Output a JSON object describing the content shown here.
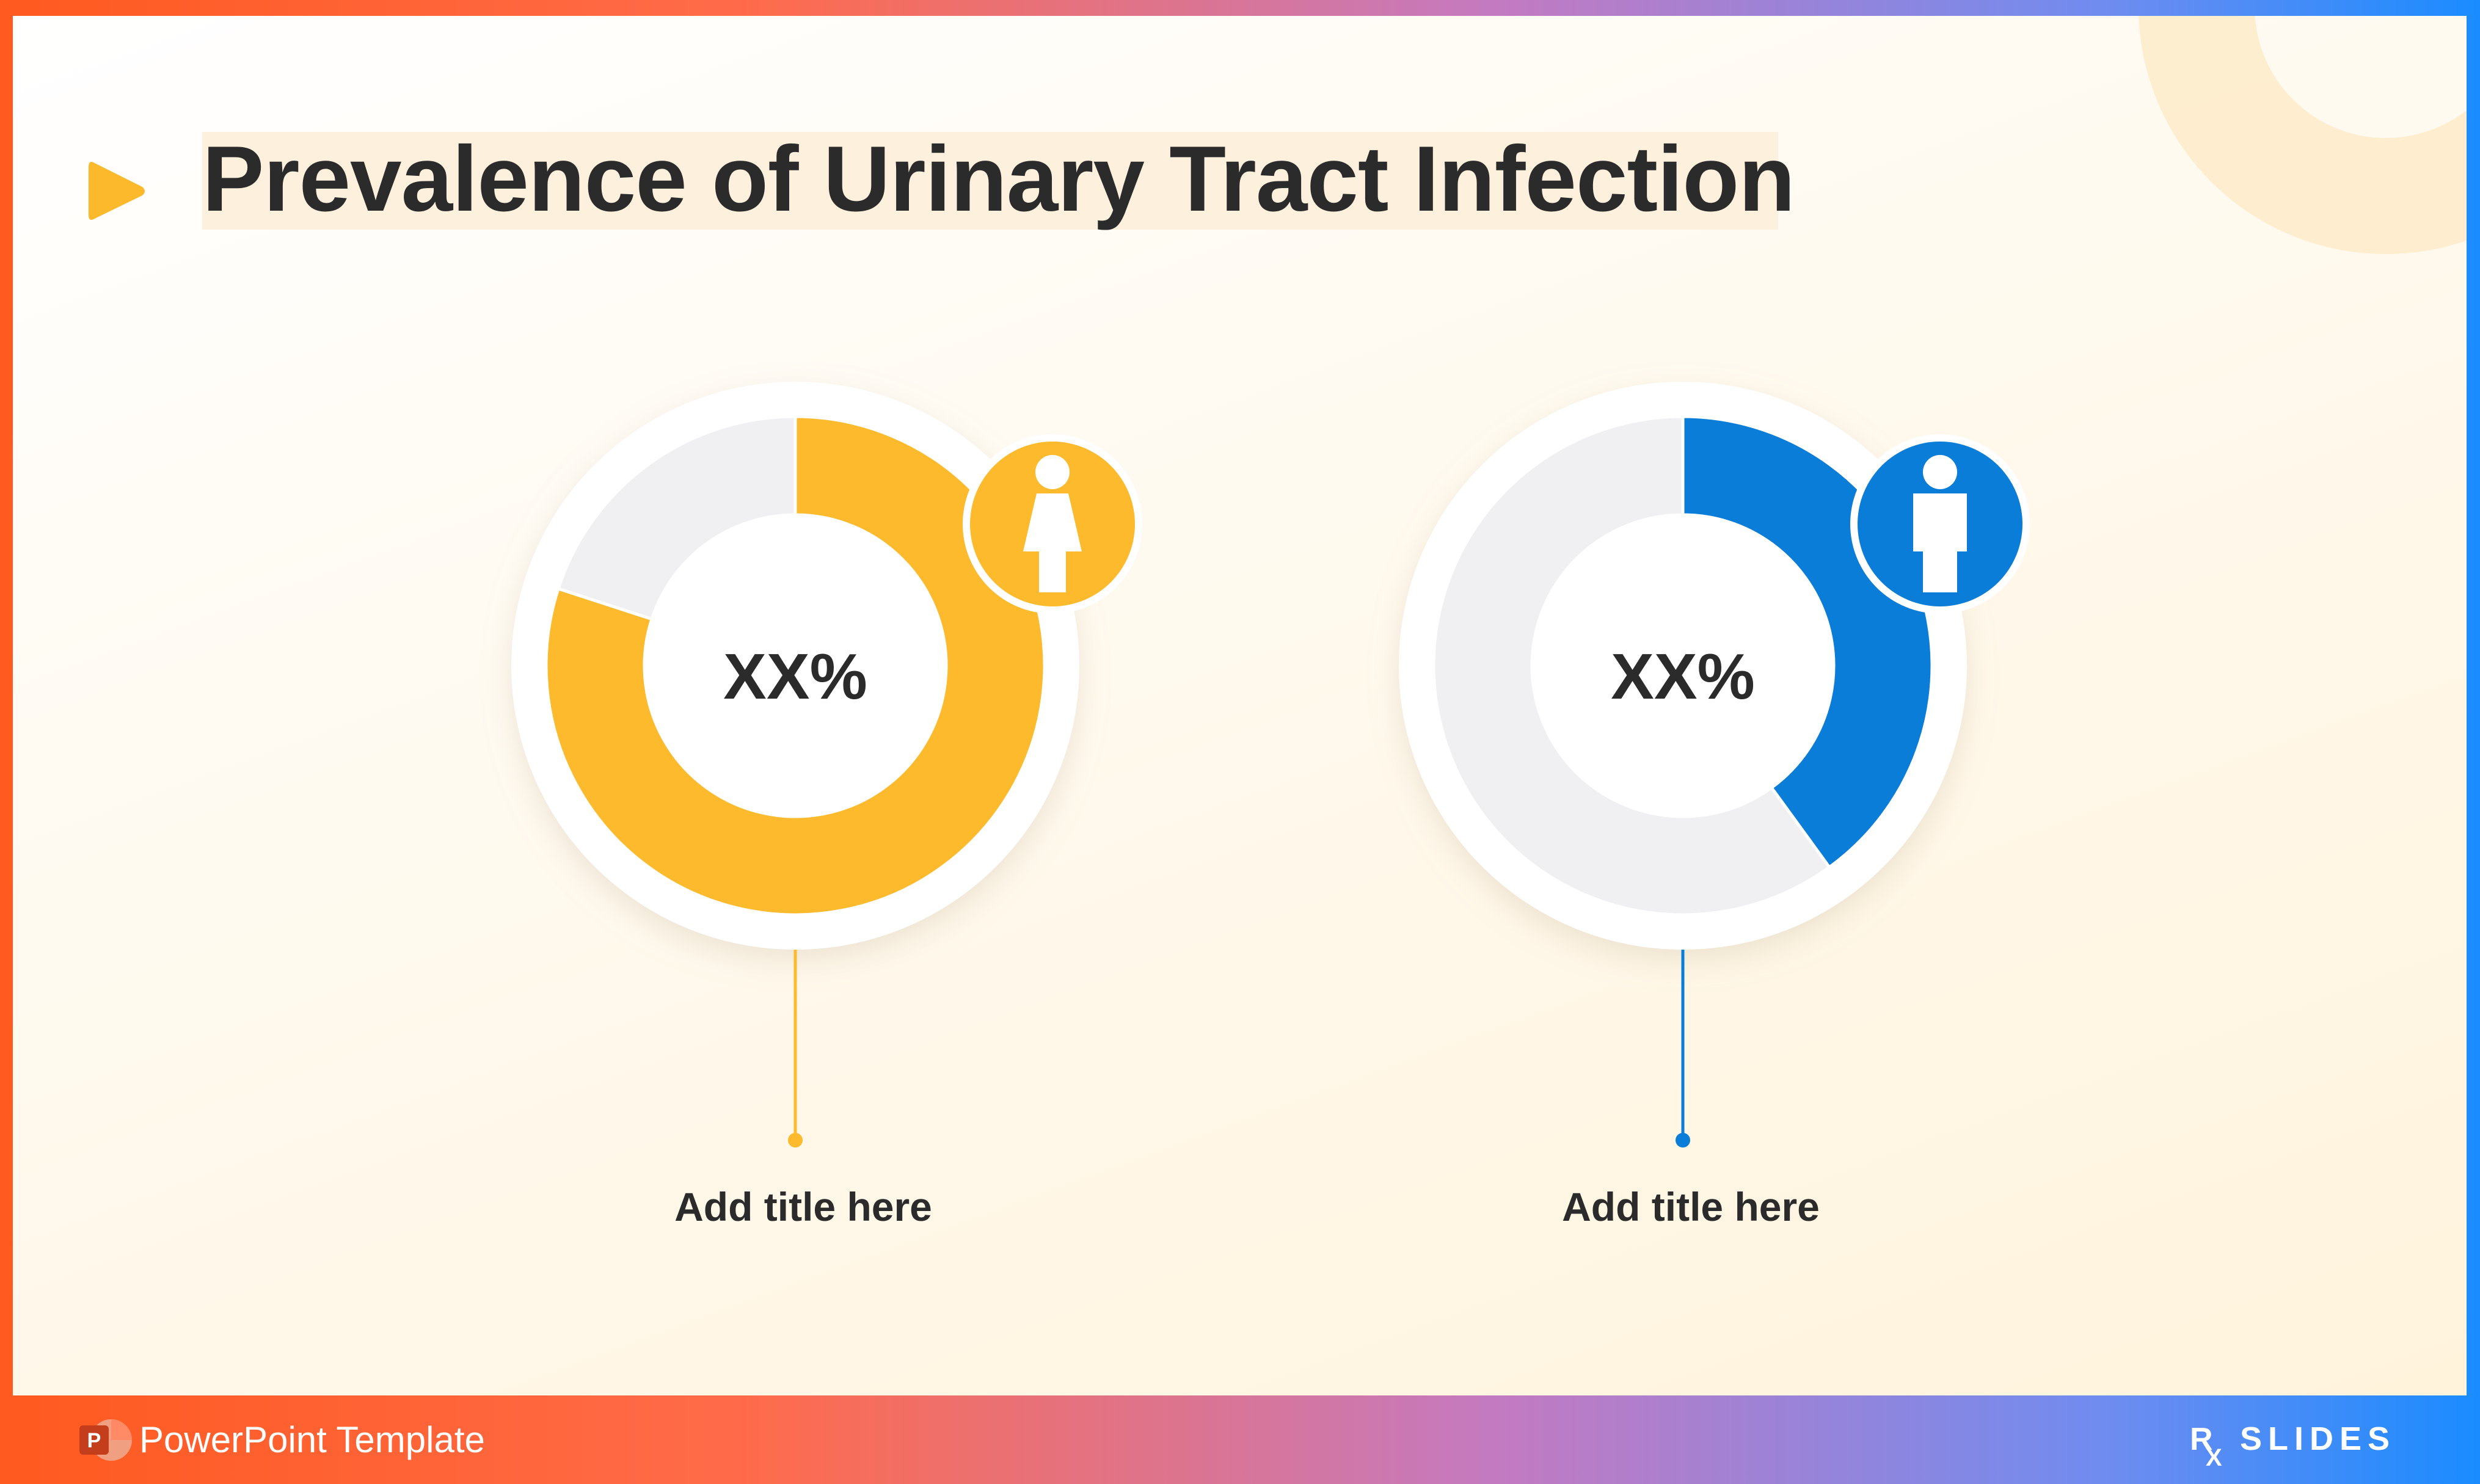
{
  "slide": {
    "title": "Prevalence of Urinary Tract Infection"
  },
  "chart_data": [
    {
      "type": "pie",
      "variant": "donut",
      "value_label": "XX%",
      "category_label": "Add title here",
      "icon": "female-person-icon",
      "color": "#FDBA2C",
      "remainder_color": "#F0EFF1",
      "values": [
        80,
        20
      ]
    },
    {
      "type": "pie",
      "variant": "donut",
      "value_label": "XX%",
      "category_label": "Add title here",
      "icon": "male-person-icon",
      "color": "#0A7DD8",
      "remainder_color": "#F0EFF1",
      "values": [
        40,
        60
      ]
    }
  ],
  "footer": {
    "left_text": "PowerPoint Template",
    "app_icon": "powerpoint-icon",
    "brand": "RX SLIDES"
  }
}
